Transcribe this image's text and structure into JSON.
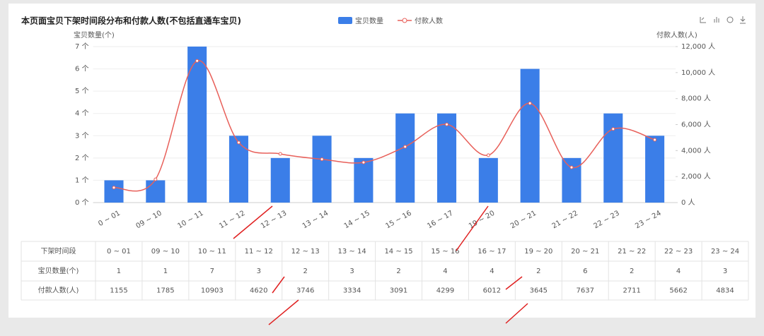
{
  "chart_data": {
    "type": "bar",
    "title": "本页面宝贝下架时间段分布和付款人数(不包括直通车宝贝)",
    "ylabel": "宝贝数量(个)",
    "y2label": "付款人数(人)",
    "categories": [
      "0 ~ 01",
      "09 ~ 10",
      "10 ~ 11",
      "11 ~ 12",
      "12 ~ 13",
      "13 ~ 14",
      "14 ~ 15",
      "15 ~ 16",
      "16 ~ 17",
      "19 ~ 20",
      "20 ~ 21",
      "21 ~ 22",
      "22 ~ 23",
      "23 ~ 24"
    ],
    "series": [
      {
        "name": "宝贝数量",
        "type": "bar",
        "color": "#3b7ee8",
        "values": [
          1,
          1,
          7,
          3,
          2,
          3,
          2,
          4,
          4,
          2,
          6,
          2,
          4,
          3
        ]
      },
      {
        "name": "付款人数",
        "type": "line",
        "axis": "y2",
        "color": "#e8605a",
        "values": [
          1155,
          1785,
          10903,
          4620,
          3746,
          3334,
          3091,
          4299,
          6012,
          3645,
          7637,
          2711,
          5662,
          4834
        ]
      }
    ],
    "ylim": [
      0,
      7
    ],
    "yticks": [
      {
        "value": 0,
        "label": "0 个"
      },
      {
        "value": 1,
        "label": "1 个"
      },
      {
        "value": 2,
        "label": "2 个"
      },
      {
        "value": 3,
        "label": "3 个"
      },
      {
        "value": 4,
        "label": "4 个"
      },
      {
        "value": 5,
        "label": "5 个"
      },
      {
        "value": 6,
        "label": "6 个"
      },
      {
        "value": 7,
        "label": "7 个"
      }
    ],
    "y2lim": [
      0,
      12000
    ],
    "y2ticks": [
      {
        "value": 0,
        "label": "0 人"
      },
      {
        "value": 2000,
        "label": "2,000 人"
      },
      {
        "value": 4000,
        "label": "4,000 人"
      },
      {
        "value": 6000,
        "label": "6,000 人"
      },
      {
        "value": 8000,
        "label": "8,000 人"
      },
      {
        "value": 10000,
        "label": "10,000 人"
      },
      {
        "value": 12000,
        "label": "12,000 人"
      }
    ],
    "grid": true
  },
  "table": {
    "header": "下架时间段",
    "row_labels": [
      "宝贝数量(个)",
      "付款人数(人)"
    ]
  }
}
